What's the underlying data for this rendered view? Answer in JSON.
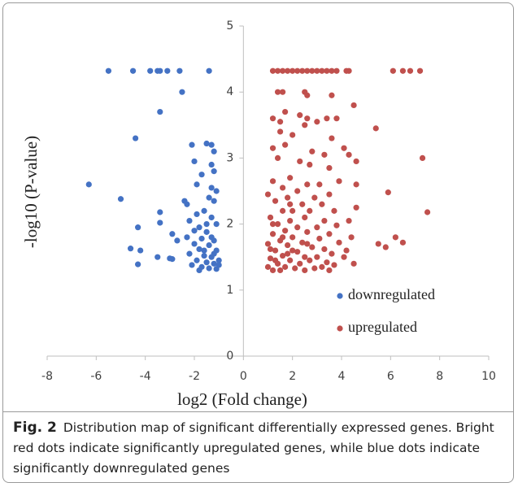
{
  "chart_data": {
    "type": "scatter",
    "xlabel": "log2 (Fold change)",
    "ylabel": "-log10 (P-value)",
    "xlim": [
      -8,
      10
    ],
    "xticks": [
      -8,
      -6,
      -4,
      -2,
      0,
      2,
      4,
      6,
      8,
      10
    ],
    "ylim": [
      0,
      5
    ],
    "yticks": [
      0,
      1,
      2,
      3,
      4,
      5
    ],
    "legend": "lower right",
    "series": [
      {
        "name": "downregulated",
        "color": "#4472c4",
        "x": [
          -5.5,
          -4.5,
          -3.8,
          -3.5,
          -3.4,
          -3.1,
          -2.6,
          -1.4,
          -2.5,
          -3.4,
          -4.4,
          -6.3,
          -5.0,
          -4.3,
          -4.6,
          -4.2,
          -4.3,
          -3.4,
          -3.4,
          -3.5,
          -3.0,
          -2.9,
          -2.9,
          -2.7,
          -2.1,
          -2.0,
          -1.5,
          -1.3,
          -1.2,
          -1.3,
          -1.2,
          -1.7,
          -1.9,
          -1.3,
          -1.1,
          -2.4,
          -2.3,
          -1.4,
          -1.2,
          -1.6,
          -1.9,
          -1.3,
          -2.2,
          -1.1,
          -1.8,
          -2.0,
          -1.5,
          -2.3,
          -1.7,
          -1.2,
          -2.0,
          -1.4,
          -1.8,
          -1.1,
          -2.2,
          -1.6,
          -1.3,
          -1.9,
          -1.5,
          -1.2,
          -2.1,
          -1.7,
          -1.4,
          -1.1,
          -1.8,
          -1.0,
          -1.0,
          -1.6,
          -1.2,
          -1.5,
          -1.3
        ],
        "values": [
          4.32,
          4.32,
          4.32,
          4.32,
          4.32,
          4.32,
          4.32,
          4.32,
          4.0,
          3.7,
          3.3,
          2.6,
          2.38,
          1.95,
          1.63,
          1.6,
          1.39,
          2.18,
          2.02,
          1.5,
          1.48,
          1.47,
          1.85,
          1.75,
          3.2,
          2.95,
          3.22,
          3.2,
          3.1,
          2.9,
          2.8,
          2.75,
          2.6,
          2.55,
          2.5,
          2.35,
          2.3,
          2.4,
          2.35,
          2.2,
          2.15,
          2.1,
          2.05,
          2.0,
          1.95,
          1.9,
          1.88,
          1.8,
          1.78,
          1.75,
          1.7,
          1.68,
          1.62,
          1.6,
          1.55,
          1.52,
          1.5,
          1.45,
          1.42,
          1.4,
          1.38,
          1.35,
          1.33,
          1.32,
          1.3,
          1.45,
          1.38,
          1.6,
          1.55,
          2.0,
          1.8
        ]
      },
      {
        "name": "upregulated",
        "color": "#c0504d",
        "x": [
          1.2,
          1.4,
          1.6,
          1.8,
          2.0,
          2.2,
          2.4,
          2.6,
          2.8,
          3.0,
          3.2,
          3.4,
          3.6,
          3.8,
          4.2,
          4.3,
          6.1,
          6.5,
          6.8,
          7.2,
          1.4,
          1.6,
          2.5,
          2.6,
          3.6,
          4.5,
          1.7,
          2.3,
          1.2,
          1.5,
          2.6,
          3.0,
          3.4,
          3.8,
          2.5,
          5.4,
          1.5,
          2.0,
          3.6,
          4.1,
          1.2,
          1.7,
          2.8,
          3.3,
          4.3,
          7.3,
          1.4,
          2.3,
          2.7,
          4.6,
          3.5,
          1.9,
          1.2,
          3.1,
          2.6,
          3.9,
          4.6,
          1.6,
          2.2,
          5.9,
          1.0,
          1.8,
          2.9,
          3.5,
          1.3,
          2.4,
          3.2,
          4.6,
          1.6,
          2.0,
          2.7,
          3.7,
          7.5,
          1.1,
          1.9,
          2.5,
          3.3,
          4.3,
          1.4,
          2.2,
          3.0,
          3.8,
          1.7,
          2.6,
          3.5,
          4.4,
          1.2,
          2.0,
          3.1,
          6.2,
          1.5,
          2.4,
          3.9,
          6.5,
          5.5,
          1.0,
          1.8,
          2.8,
          3.3,
          4.2,
          5.8,
          1.3,
          2.2,
          3.6,
          1.6,
          2.5,
          3.0,
          4.1,
          1.1,
          1.9,
          2.7,
          3.4,
          1.4,
          2.3,
          3.7,
          4.5,
          1.0,
          1.7,
          2.1,
          2.9,
          3.2,
          1.2,
          1.5,
          2.5,
          3.5,
          1.8,
          1.3,
          2.0,
          1.1,
          2.6,
          1.6,
          1.9,
          1.2
        ],
        "values": [
          4.32,
          4.32,
          4.32,
          4.32,
          4.32,
          4.32,
          4.32,
          4.32,
          4.32,
          4.32,
          4.32,
          4.32,
          4.32,
          4.32,
          4.32,
          4.32,
          4.32,
          4.32,
          4.32,
          4.32,
          4.0,
          4.0,
          4.0,
          3.95,
          3.95,
          3.8,
          3.7,
          3.65,
          3.6,
          3.55,
          3.6,
          3.55,
          3.6,
          3.6,
          3.5,
          3.45,
          3.4,
          3.35,
          3.3,
          3.15,
          3.15,
          3.2,
          3.1,
          3.05,
          3.05,
          3.0,
          3.0,
          2.95,
          2.9,
          2.95,
          2.85,
          2.7,
          2.65,
          2.6,
          2.6,
          2.65,
          2.6,
          2.55,
          2.5,
          2.48,
          2.45,
          2.4,
          2.4,
          2.45,
          2.35,
          2.3,
          2.3,
          2.25,
          2.2,
          2.2,
          2.2,
          2.2,
          2.18,
          2.1,
          2.05,
          2.1,
          2.05,
          2.05,
          2.0,
          1.95,
          1.95,
          1.98,
          1.9,
          1.88,
          1.85,
          1.8,
          1.85,
          1.8,
          1.78,
          1.8,
          1.75,
          1.72,
          1.72,
          1.72,
          1.7,
          1.7,
          1.68,
          1.65,
          1.62,
          1.6,
          1.65,
          1.6,
          1.58,
          1.55,
          1.52,
          1.5,
          1.5,
          1.5,
          1.48,
          1.45,
          1.45,
          1.42,
          1.4,
          1.4,
          1.38,
          1.4,
          1.35,
          1.35,
          1.33,
          1.33,
          1.35,
          1.3,
          1.3,
          1.3,
          1.3,
          1.55,
          1.45,
          1.6,
          1.62,
          1.7,
          1.8,
          2.3,
          2.0
        ]
      }
    ]
  },
  "caption": {
    "label": "Fig. 2",
    "text": "Distribution map of significant differentially expressed genes. Bright red dots indicate significantly upregulated genes, while blue dots indicate significantly downregulated genes"
  }
}
